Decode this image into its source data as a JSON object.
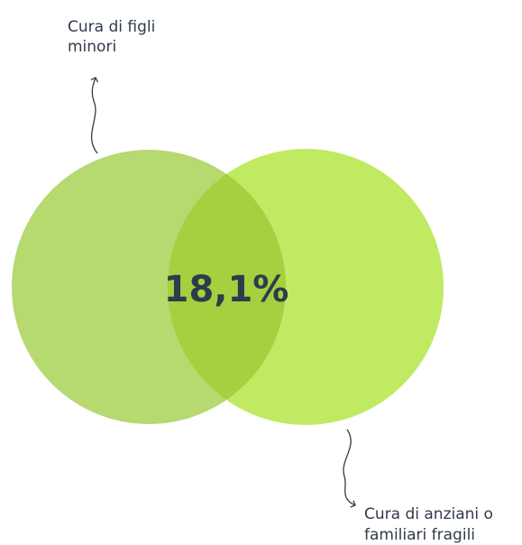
{
  "sets": [
    {
      "label": [
        "Cura di figli",
        "minori"
      ]
    },
    {
      "label": [
        "Cura di anziani o",
        "familiari fragili"
      ]
    }
  ],
  "intersection": {
    "label": "18,1%"
  }
}
